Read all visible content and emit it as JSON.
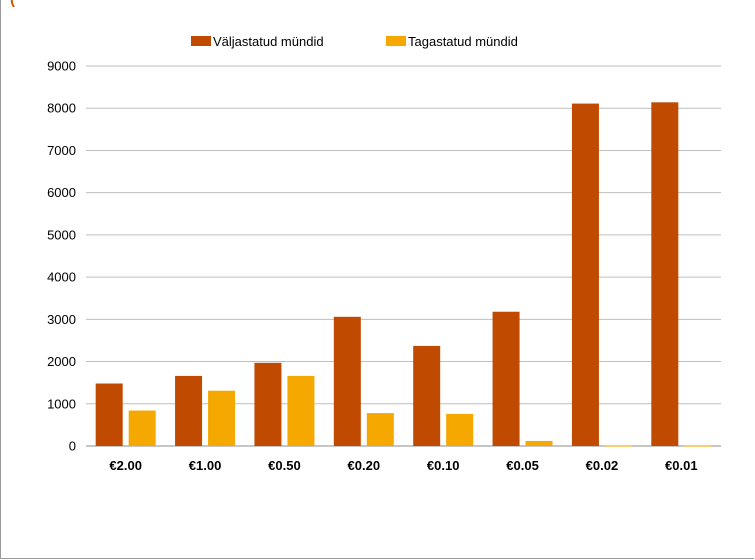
{
  "title_fragment": "(",
  "colors": {
    "issued": "#c04a00",
    "returned": "#f5a800",
    "grid": "#bfbfbf",
    "axis": "#8c8c8c"
  },
  "chart_data": {
    "type": "bar",
    "categories": [
      "€2.00",
      "€1.00",
      "€0.50",
      "€0.20",
      "€0.10",
      "€0.05",
      "€0.02",
      "€0.01"
    ],
    "series": [
      {
        "name": "Väljastatud mündid",
        "values": [
          1480,
          1660,
          1970,
          3060,
          2370,
          3180,
          8110,
          8140
        ]
      },
      {
        "name": "Tagastatud mündid",
        "values": [
          840,
          1310,
          1660,
          780,
          760,
          120,
          10,
          10
        ]
      }
    ],
    "ylim": [
      0,
      9000
    ],
    "yticks": [
      "0",
      "1000",
      "2000",
      "3000",
      "4000",
      "5000",
      "6000",
      "7000",
      "8000",
      "9000"
    ],
    "grid": true,
    "legend": "top-center"
  }
}
